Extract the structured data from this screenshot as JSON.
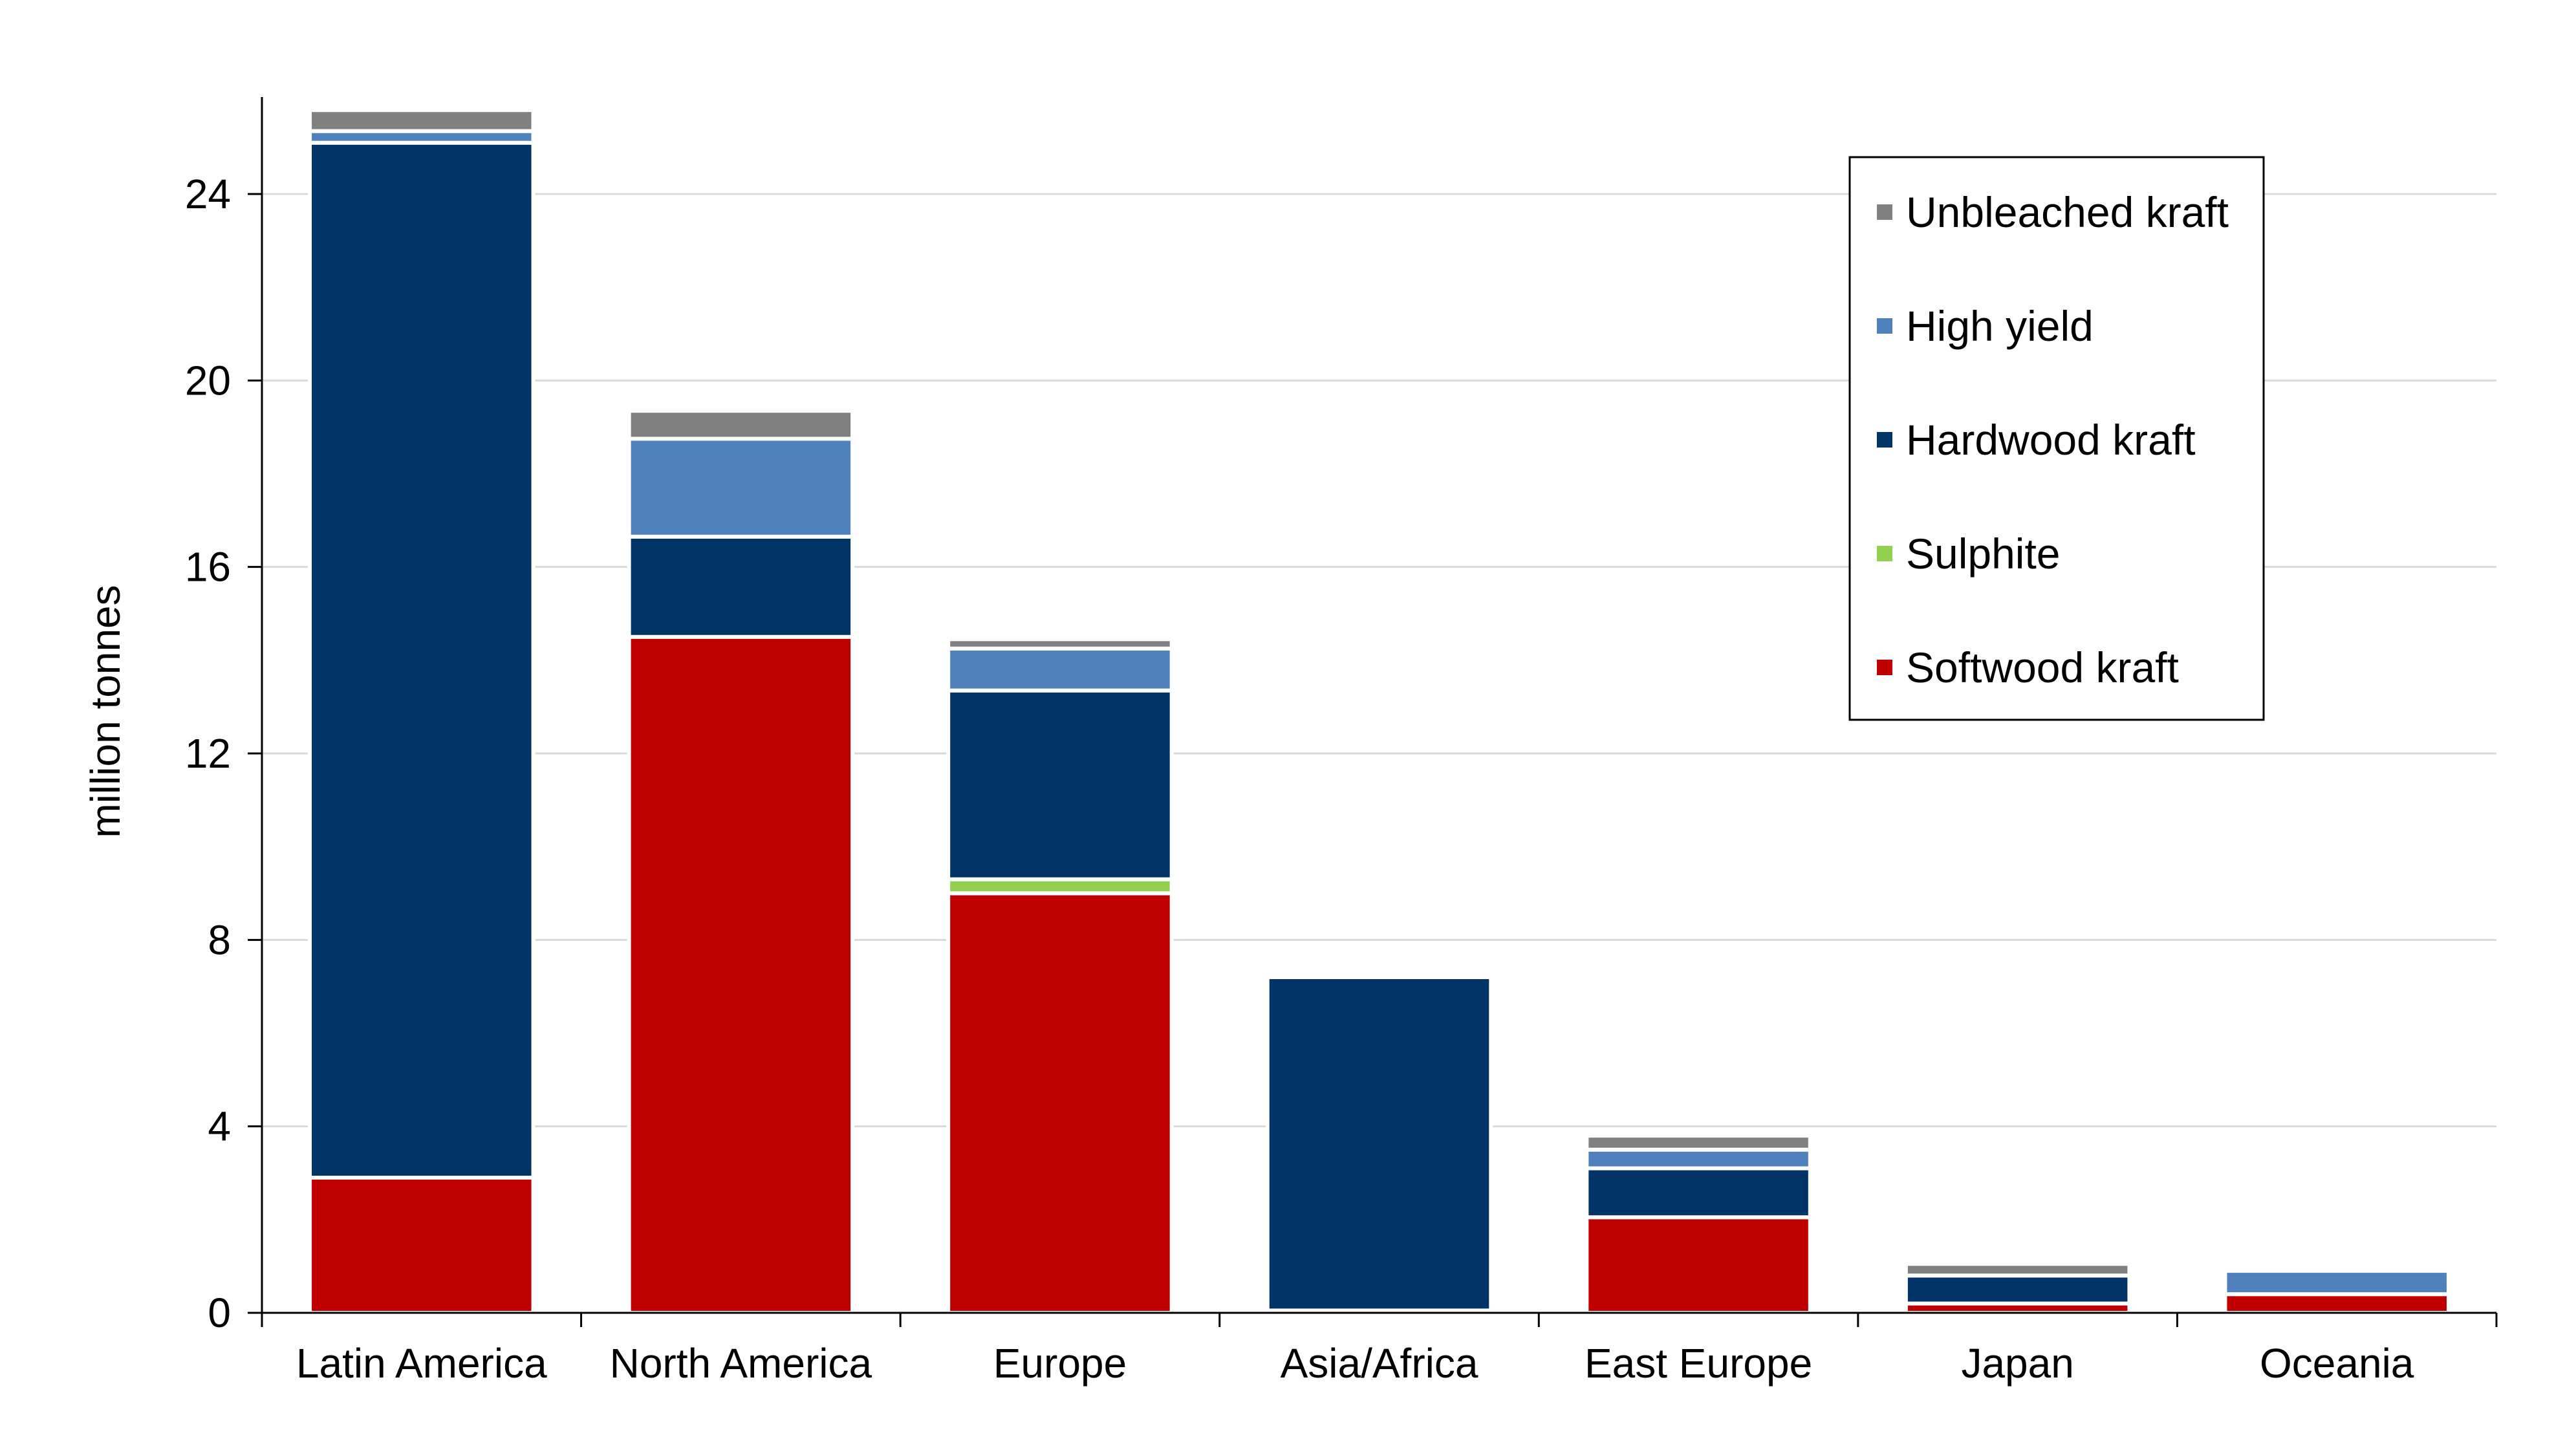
{
  "chart_data": {
    "type": "bar",
    "stacked": true,
    "title": "",
    "xlabel": "",
    "ylabel": "million tonnes",
    "ylim": [
      0,
      26
    ],
    "yticks": [
      0,
      4,
      8,
      12,
      16,
      20,
      24
    ],
    "grid": true,
    "legend_position": "top-right",
    "categories": [
      "Latin America",
      "North America",
      "Europe",
      "Asia/Africa",
      "East Europe",
      "Japan",
      "Oceania"
    ],
    "series": [
      {
        "name": "Softwood kraft",
        "color": "#C00000",
        "values": [
          2.9,
          14.5,
          9.0,
          0.05,
          2.05,
          0.2,
          0.4
        ]
      },
      {
        "name": "Sulphite",
        "color": "#92D050",
        "values": [
          0.0,
          0.0,
          0.3,
          0.0,
          0.0,
          0.0,
          0.0
        ]
      },
      {
        "name": "Hardwood kraft",
        "color": "#003366",
        "values": [
          22.2,
          2.15,
          4.05,
          7.15,
          1.05,
          0.6,
          0.0
        ]
      },
      {
        "name": "High yield",
        "color": "#4F81BD",
        "values": [
          0.25,
          2.1,
          0.9,
          0.0,
          0.4,
          0.0,
          0.5
        ]
      },
      {
        "name": "Unbleached kraft",
        "color": "#808080",
        "values": [
          0.45,
          0.6,
          0.2,
          0.0,
          0.3,
          0.25,
          0.0
        ]
      }
    ],
    "legend_order": [
      "Unbleached kraft",
      "High yield",
      "Hardwood kraft",
      "Sulphite",
      "Softwood kraft"
    ]
  }
}
